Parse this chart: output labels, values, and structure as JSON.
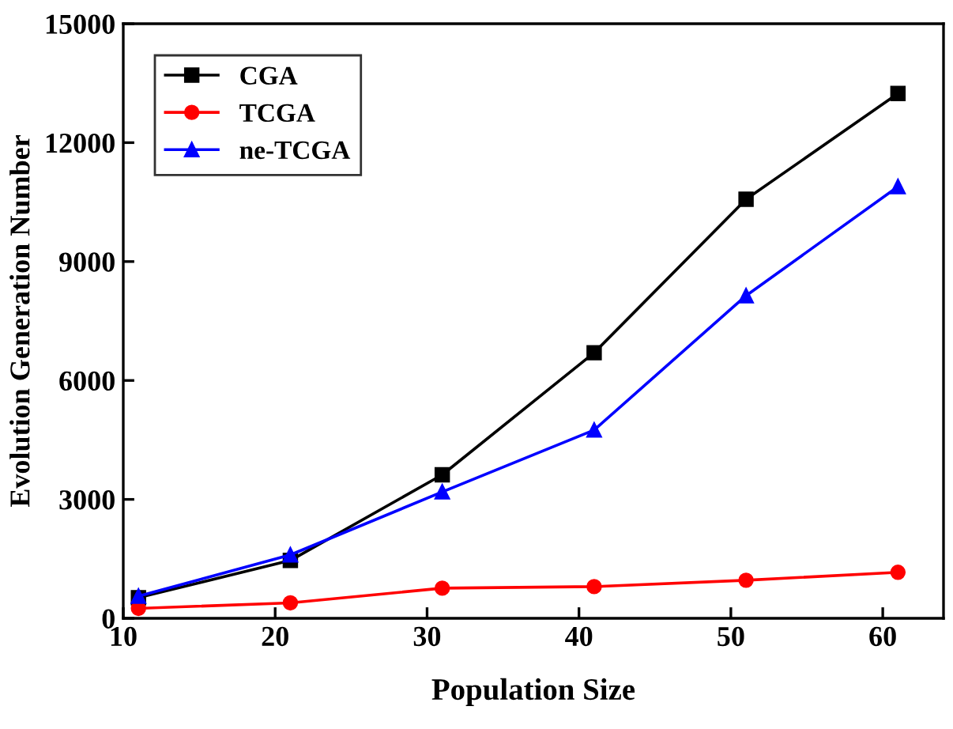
{
  "chart_data": {
    "type": "line",
    "xlabel": "Population Size",
    "ylabel": "Evolution Generation Number",
    "x": [
      11,
      21,
      31,
      41,
      51,
      61
    ],
    "series": [
      {
        "name": "CGA",
        "color": "#000000",
        "marker": "square",
        "values": [
          520,
          1460,
          3620,
          6700,
          10570,
          13240
        ]
      },
      {
        "name": "TCGA",
        "color": "#ff0000",
        "marker": "circle",
        "values": [
          250,
          390,
          760,
          800,
          960,
          1160
        ]
      },
      {
        "name": "ne-TCGA",
        "color": "#0000ff",
        "marker": "triangle",
        "values": [
          560,
          1600,
          3190,
          4750,
          8140,
          10890
        ]
      }
    ],
    "xlim": [
      10,
      64
    ],
    "xticks": [
      10,
      20,
      30,
      40,
      50,
      60
    ],
    "ylim": [
      0,
      15000
    ],
    "yticks": [
      0,
      3000,
      6000,
      9000,
      12000,
      15000
    ],
    "grid": false,
    "legend": "top left",
    "line_style": "solid"
  }
}
